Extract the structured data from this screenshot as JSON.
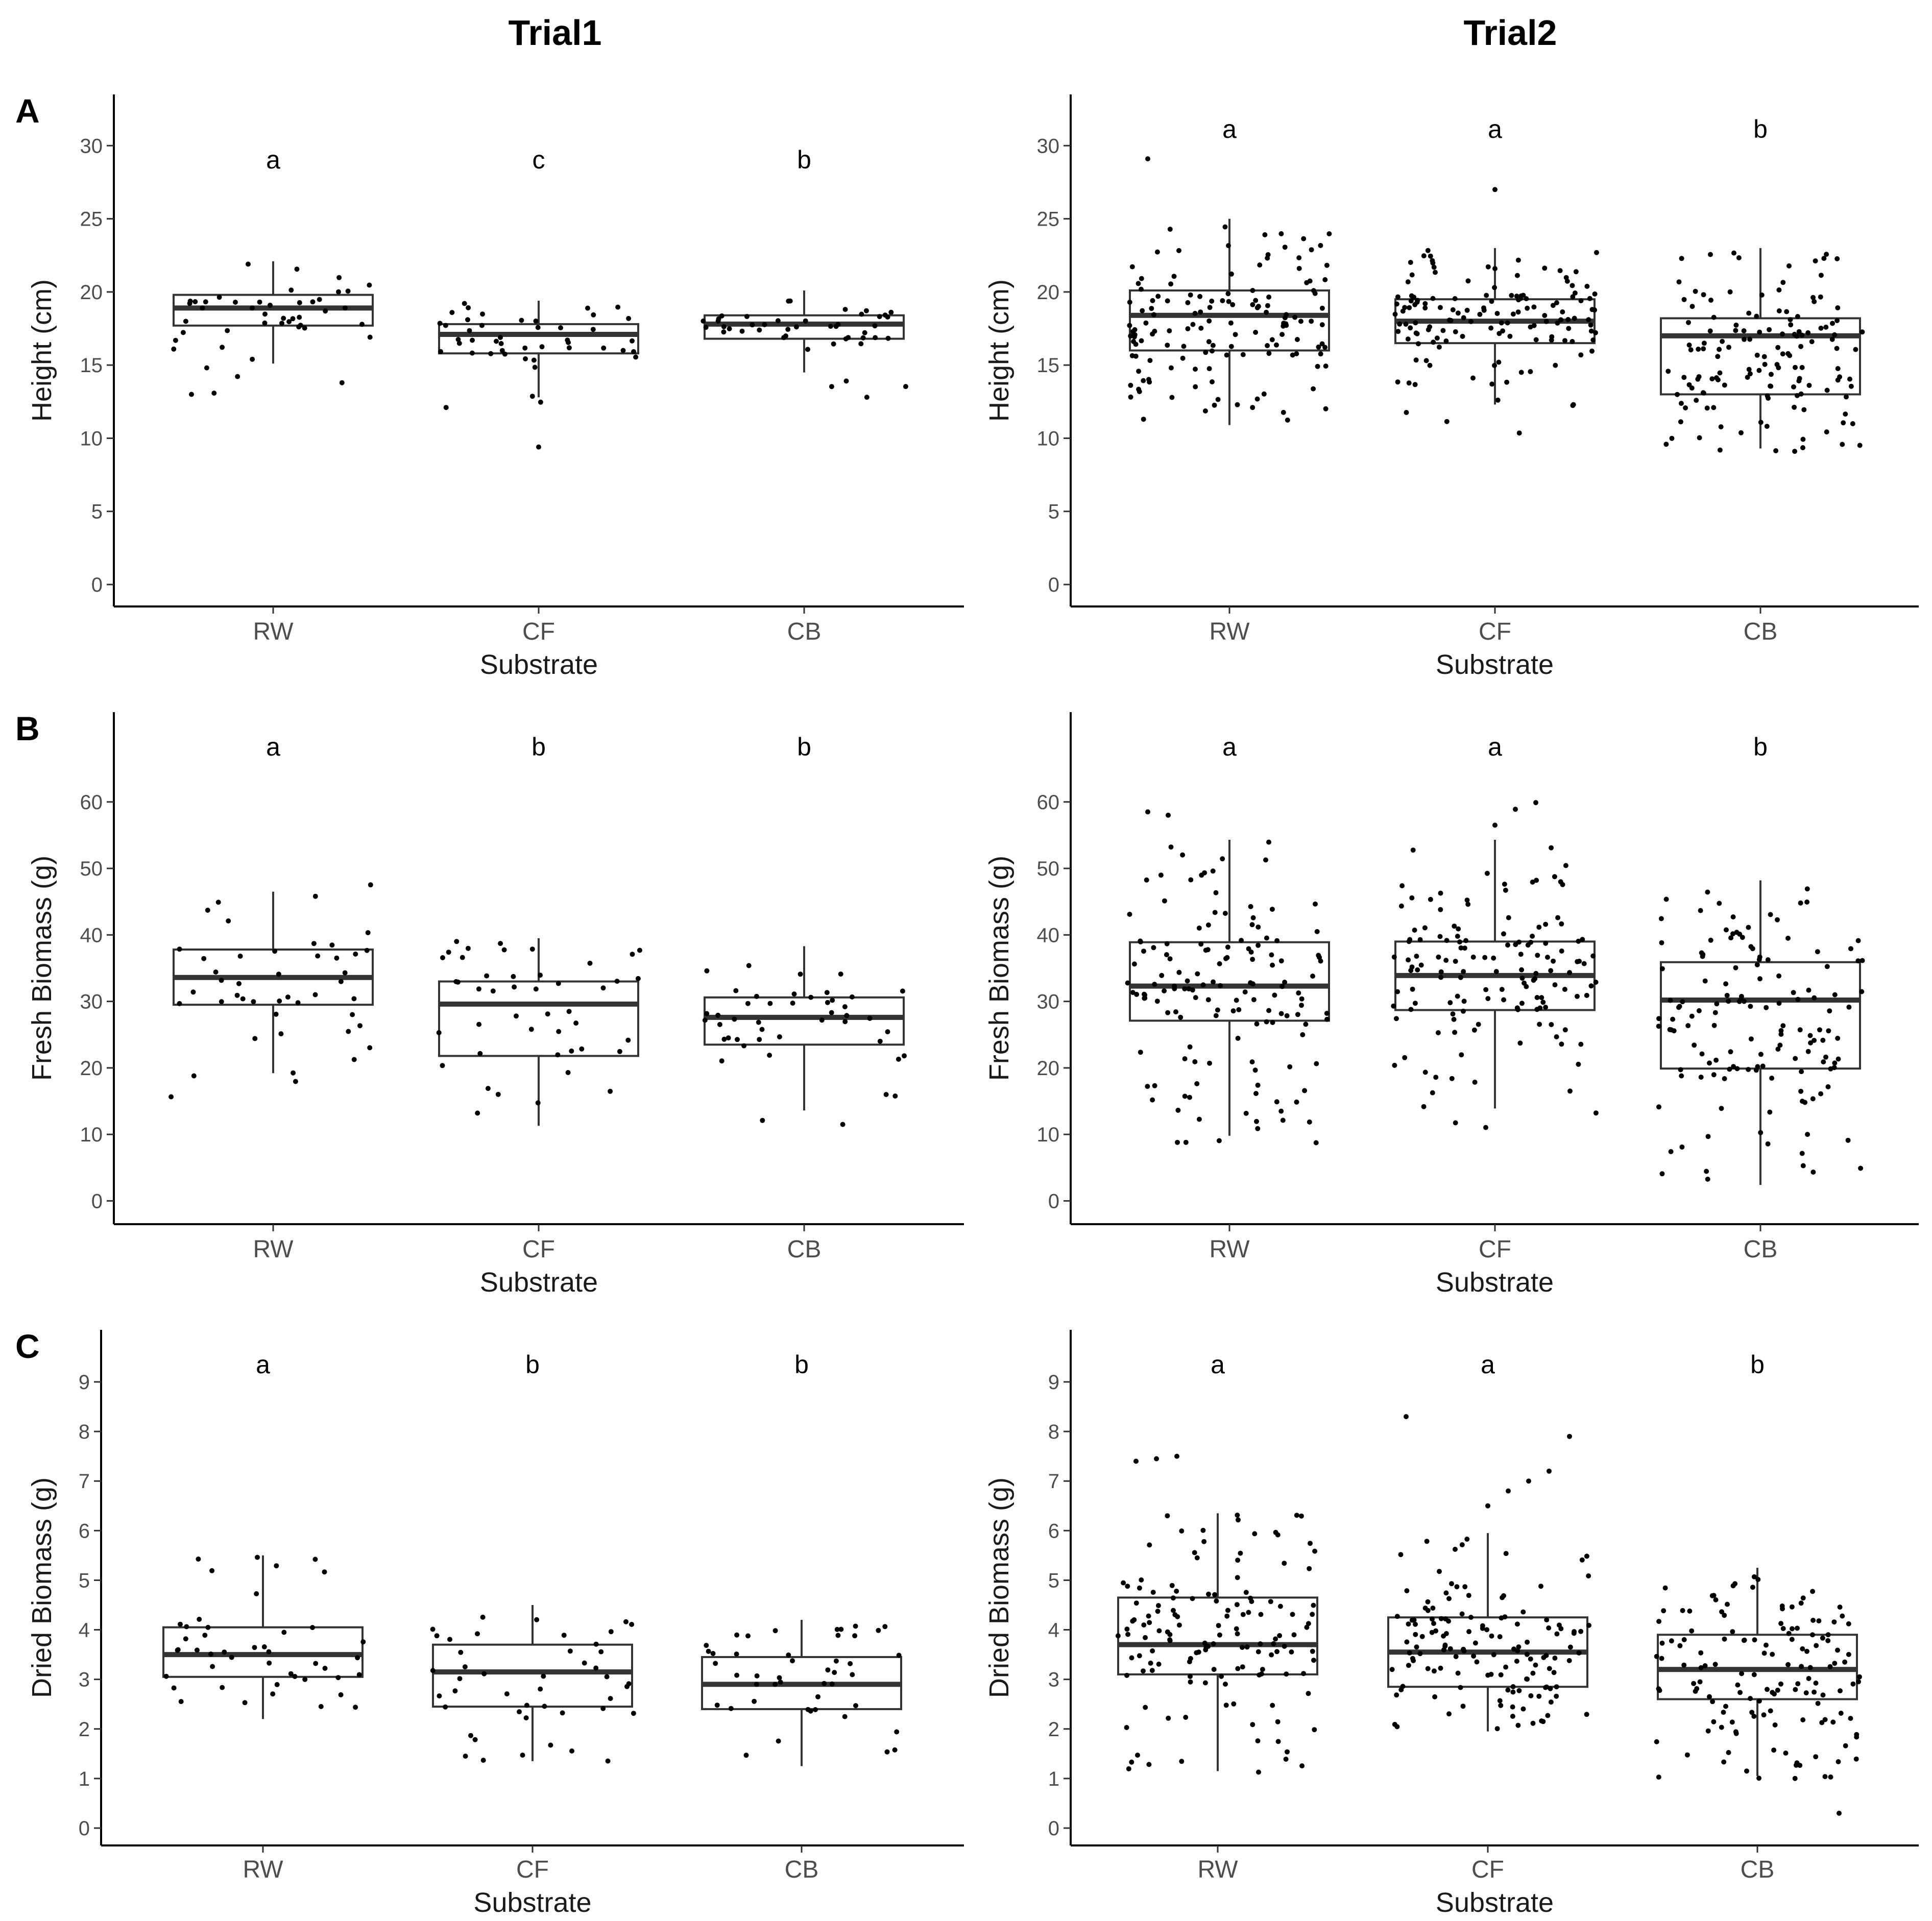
{
  "columns": [
    "Trial1",
    "Trial2"
  ],
  "panel_letters": [
    "A",
    "B",
    "C"
  ],
  "chart_data": [
    {
      "type": "boxplot",
      "panel": "A",
      "trial": "Trial1",
      "xlabel": "Substrate",
      "ylabel": "Height (cm)",
      "ylim": [
        -1.5,
        33.5
      ],
      "yticks": [
        0,
        5,
        10,
        15,
        20,
        25,
        30
      ],
      "categories": [
        "RW",
        "CF",
        "CB"
      ],
      "groups": [
        {
          "name": "RW",
          "q1": 17.7,
          "median": 18.9,
          "q3": 19.8,
          "whisker_low": 15.1,
          "whisker_high": 22.1,
          "letter": "a",
          "n": 45,
          "range": [
            13.0,
            22.2
          ],
          "outliers": [
            13.0
          ]
        },
        {
          "name": "CF",
          "q1": 15.8,
          "median": 17.1,
          "q3": 17.8,
          "whisker_low": 12.8,
          "whisker_high": 19.4,
          "letter": "c",
          "n": 45,
          "range": [
            12.0,
            19.3
          ],
          "outliers": [
            9.4
          ]
        },
        {
          "name": "CB",
          "q1": 16.8,
          "median": 17.8,
          "q3": 18.4,
          "whisker_low": 14.5,
          "whisker_high": 20.1,
          "letter": "b",
          "n": 45,
          "range": [
            12.5,
            20.4
          ],
          "outliers": []
        }
      ]
    },
    {
      "type": "boxplot",
      "panel": "A",
      "trial": "Trial2",
      "xlabel": "Substrate",
      "ylabel": "Height (cm)",
      "ylim": [
        -1.5,
        33.5
      ],
      "yticks": [
        0,
        5,
        10,
        15,
        20,
        25,
        30
      ],
      "categories": [
        "RW",
        "CF",
        "CB"
      ],
      "groups": [
        {
          "name": "RW",
          "q1": 16.0,
          "median": 18.4,
          "q3": 20.1,
          "whisker_low": 10.9,
          "whisker_high": 25.0,
          "letter": "a",
          "n": 140,
          "range": [
            10.9,
            24.5
          ],
          "outliers": [
            29.1
          ]
        },
        {
          "name": "CF",
          "q1": 16.5,
          "median": 18.0,
          "q3": 19.5,
          "whisker_low": 12.3,
          "whisker_high": 23.0,
          "letter": "a",
          "n": 140,
          "range": [
            10.0,
            23.0
          ],
          "outliers": [
            27.0
          ]
        },
        {
          "name": "CB",
          "q1": 13.0,
          "median": 17.0,
          "q3": 18.2,
          "whisker_low": 9.3,
          "whisker_high": 23.0,
          "letter": "b",
          "n": 140,
          "range": [
            9.1,
            23.0
          ],
          "outliers": []
        }
      ]
    },
    {
      "type": "boxplot",
      "panel": "B",
      "trial": "Trial1",
      "xlabel": "Substrate",
      "ylabel": "Fresh Biomass (g)",
      "ylim": [
        -3.5,
        73.5
      ],
      "yticks": [
        0,
        10,
        20,
        30,
        40,
        50,
        60
      ],
      "categories": [
        "RW",
        "CF",
        "CB"
      ],
      "groups": [
        {
          "name": "RW",
          "q1": 29.5,
          "median": 33.6,
          "q3": 37.8,
          "whisker_low": 19.2,
          "whisker_high": 46.5,
          "letter": "a",
          "n": 45,
          "range": [
            15.0,
            50.2
          ],
          "outliers": []
        },
        {
          "name": "CF",
          "q1": 21.8,
          "median": 29.6,
          "q3": 33.0,
          "whisker_low": 11.3,
          "whisker_high": 39.5,
          "letter": "b",
          "n": 45,
          "range": [
            11.0,
            39.5
          ],
          "outliers": []
        },
        {
          "name": "CB",
          "q1": 23.5,
          "median": 27.6,
          "q3": 30.6,
          "whisker_low": 13.6,
          "whisker_high": 38.3,
          "letter": "b",
          "n": 45,
          "range": [
            10.0,
            37.5
          ],
          "outliers": []
        }
      ]
    },
    {
      "type": "boxplot",
      "panel": "B",
      "trial": "Trial2",
      "xlabel": "Substrate",
      "ylabel": "Fresh Biomass (g)",
      "ylim": [
        -3.5,
        73.5
      ],
      "yticks": [
        0,
        10,
        20,
        30,
        40,
        50,
        60
      ],
      "categories": [
        "RW",
        "CF",
        "CB"
      ],
      "groups": [
        {
          "name": "RW",
          "q1": 27.1,
          "median": 32.3,
          "q3": 38.9,
          "whisker_low": 9.8,
          "whisker_high": 54.3,
          "letter": "a",
          "n": 140,
          "range": [
            8.0,
            55.0
          ],
          "outliers": [
            58.5,
            58.0
          ]
        },
        {
          "name": "CF",
          "q1": 28.7,
          "median": 33.9,
          "q3": 39.0,
          "whisker_low": 13.9,
          "whisker_high": 54.3,
          "letter": "a",
          "n": 140,
          "range": [
            10.5,
            54.0
          ],
          "outliers": [
            56.5,
            58.9,
            59.9
          ]
        },
        {
          "name": "CB",
          "q1": 19.9,
          "median": 30.2,
          "q3": 35.9,
          "whisker_low": 2.4,
          "whisker_high": 48.2,
          "letter": "b",
          "n": 140,
          "range": [
            2.5,
            47.5
          ],
          "outliers": []
        }
      ]
    },
    {
      "type": "boxplot",
      "panel": "C",
      "trial": "Trial1",
      "xlabel": "Substrate",
      "ylabel": "Dried Biomass (g)",
      "ylim": [
        -0.35,
        10.05
      ],
      "yticks": [
        0,
        1,
        2,
        3,
        4,
        5,
        6,
        7,
        8,
        9
      ],
      "categories": [
        "RW",
        "CF",
        "CB"
      ],
      "groups": [
        {
          "name": "RW",
          "q1": 3.05,
          "median": 3.5,
          "q3": 4.05,
          "whisker_low": 2.2,
          "whisker_high": 5.5,
          "letter": "a",
          "n": 45,
          "range": [
            2.2,
            5.7
          ],
          "outliers": []
        },
        {
          "name": "CF",
          "q1": 2.45,
          "median": 3.15,
          "q3": 3.7,
          "whisker_low": 1.35,
          "whisker_high": 4.5,
          "letter": "b",
          "n": 45,
          "range": [
            1.35,
            4.45
          ],
          "outliers": []
        },
        {
          "name": "CB",
          "q1": 2.4,
          "median": 2.9,
          "q3": 3.45,
          "whisker_low": 1.25,
          "whisker_high": 4.2,
          "letter": "b",
          "n": 45,
          "range": [
            1.2,
            4.15
          ],
          "outliers": []
        }
      ]
    },
    {
      "type": "boxplot",
      "panel": "C",
      "trial": "Trial2",
      "xlabel": "Substrate",
      "ylabel": "Dried Biomass (g)",
      "ylim": [
        -0.35,
        10.05
      ],
      "yticks": [
        0,
        1,
        2,
        3,
        4,
        5,
        6,
        7,
        8,
        9
      ],
      "categories": [
        "RW",
        "CF",
        "CB"
      ],
      "groups": [
        {
          "name": "RW",
          "q1": 3.1,
          "median": 3.7,
          "q3": 4.65,
          "whisker_low": 1.15,
          "whisker_high": 6.35,
          "letter": "a",
          "n": 140,
          "range": [
            1.1,
            6.4
          ],
          "outliers": [
            7.4,
            7.45,
            7.5
          ]
        },
        {
          "name": "CF",
          "q1": 2.85,
          "median": 3.55,
          "q3": 4.25,
          "whisker_low": 1.95,
          "whisker_high": 5.95,
          "letter": "a",
          "n": 140,
          "range": [
            1.95,
            5.9
          ],
          "outliers": [
            6.5,
            6.8,
            7.0,
            7.2,
            7.9,
            8.3
          ]
        },
        {
          "name": "CB",
          "q1": 2.6,
          "median": 3.2,
          "q3": 3.9,
          "whisker_low": 1.05,
          "whisker_high": 5.25,
          "letter": "b",
          "n": 140,
          "range": [
            1.0,
            5.1
          ],
          "outliers": [
            0.3
          ]
        }
      ]
    }
  ]
}
